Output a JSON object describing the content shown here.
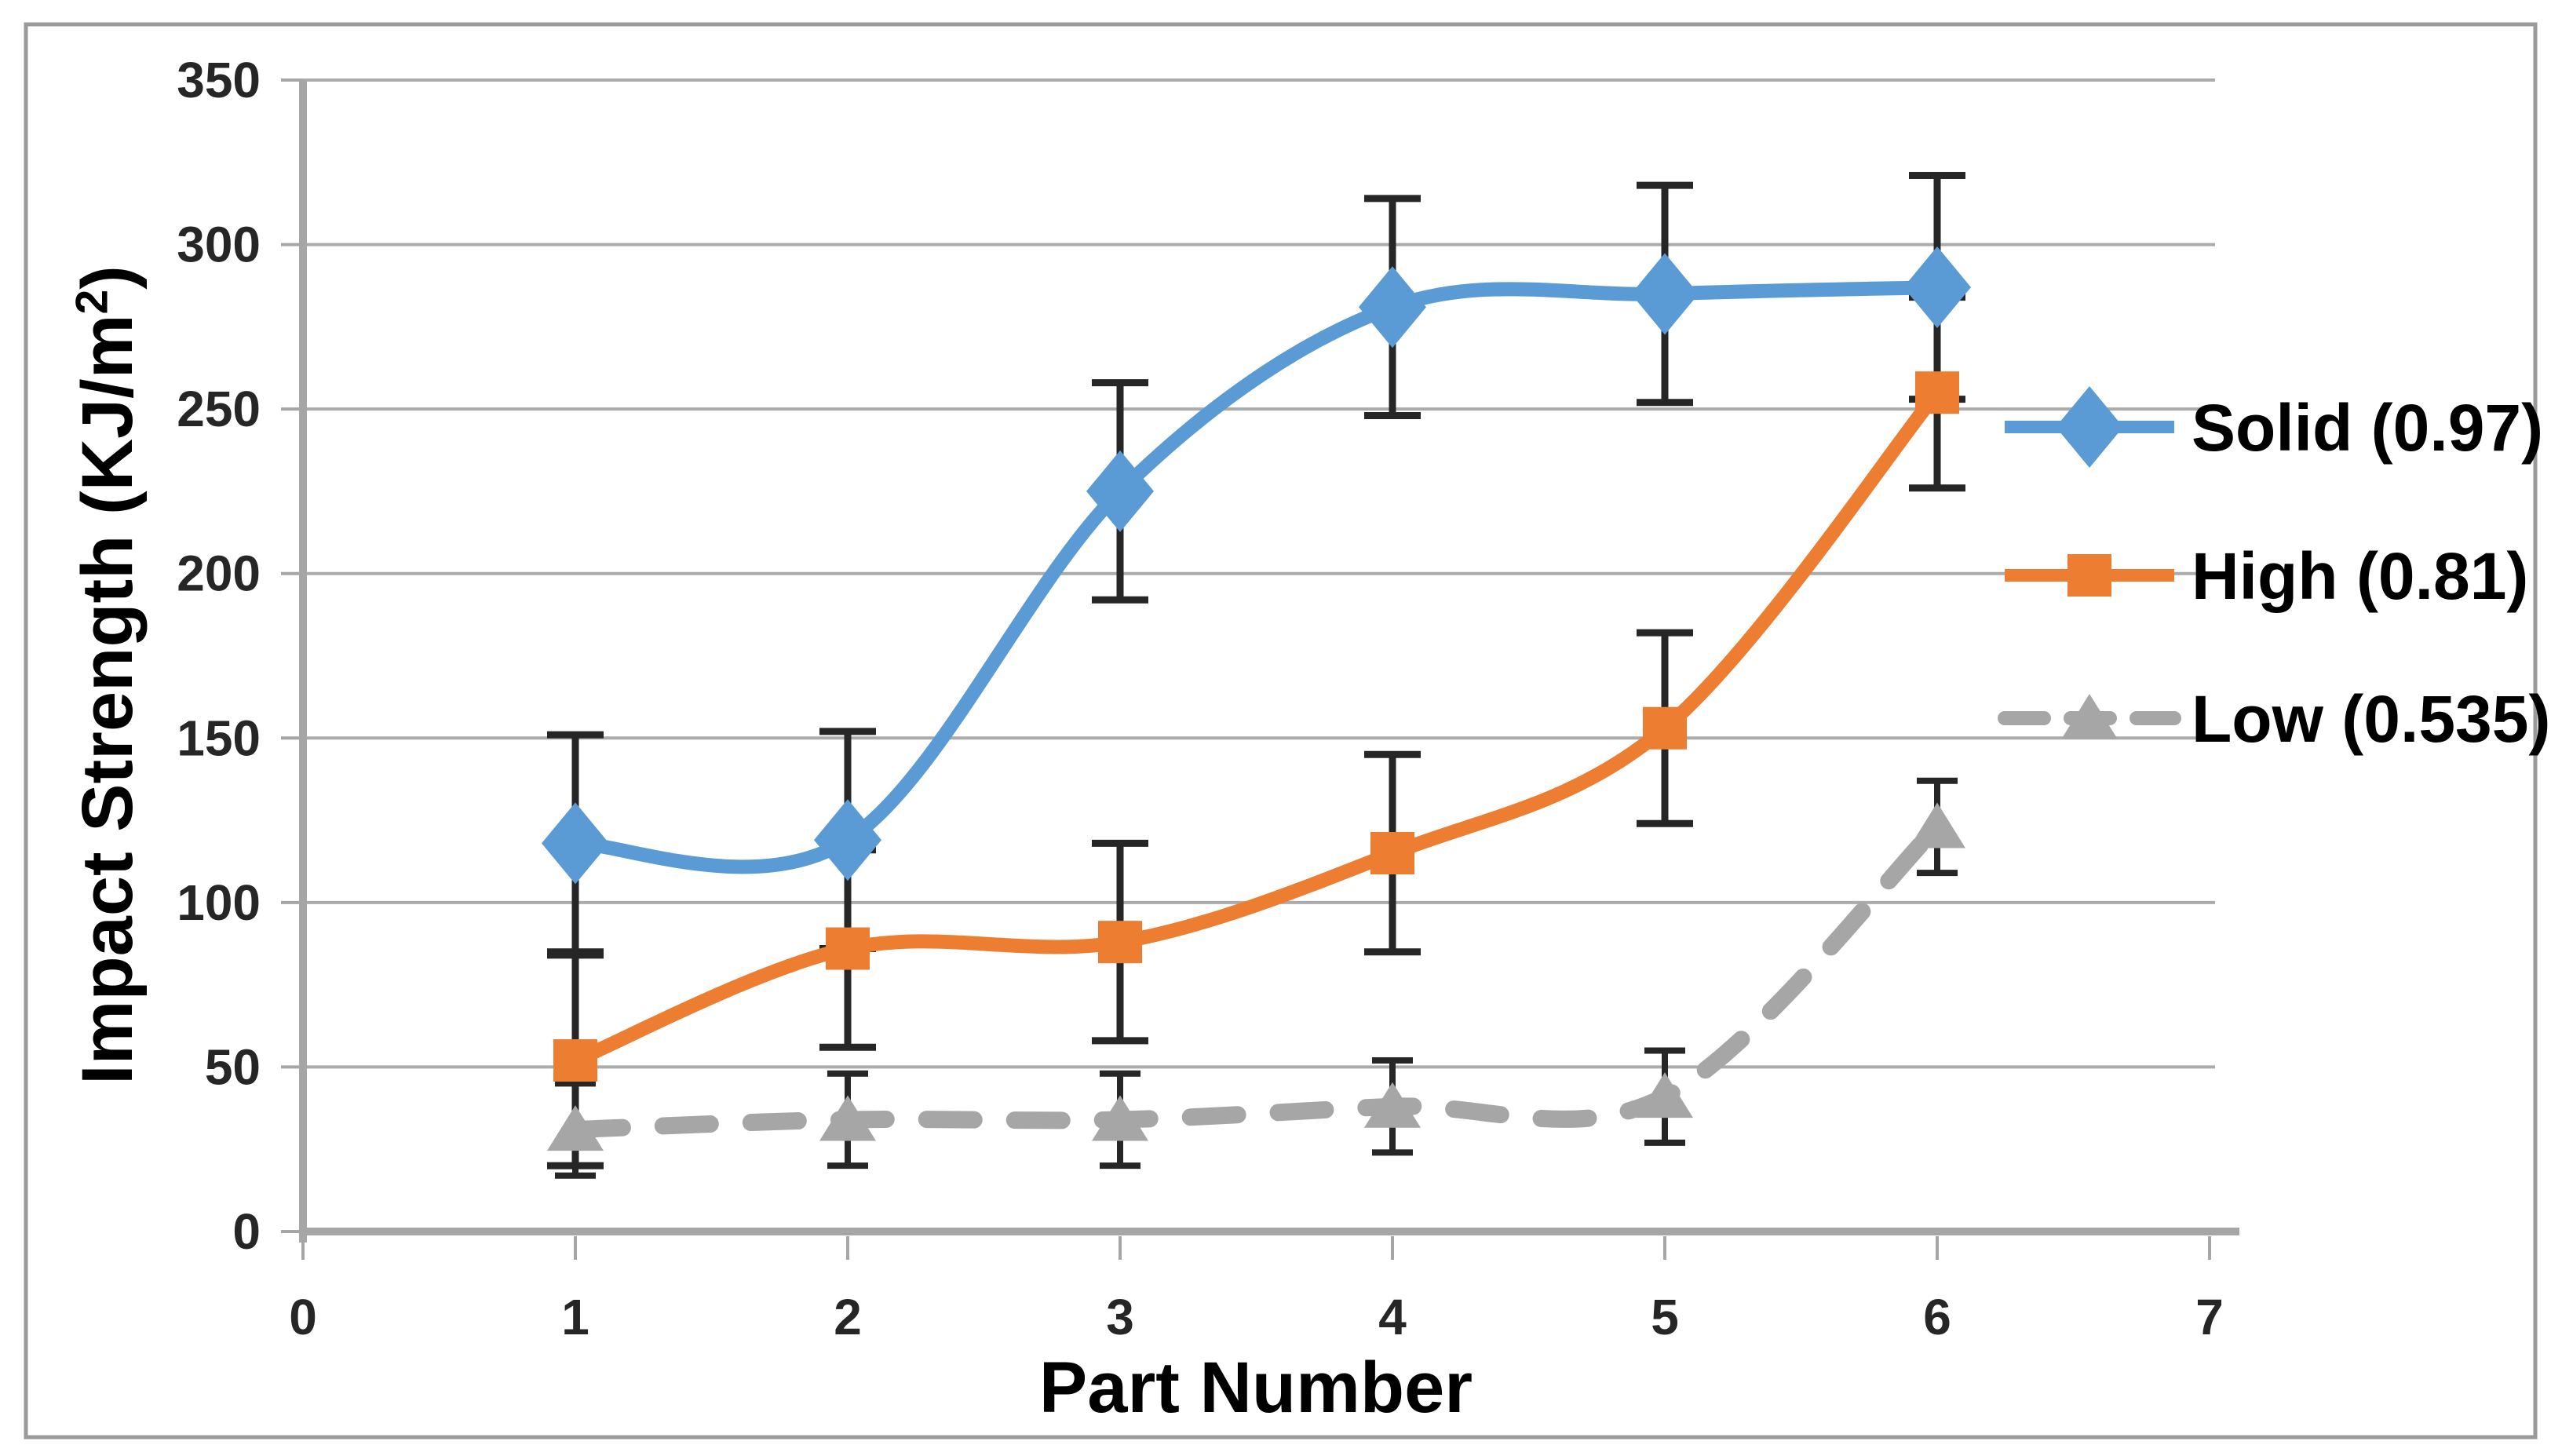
{
  "chart_data": {
    "type": "line",
    "title": "",
    "xlabel": "Part Number",
    "ylabel": "Impact Strength (KJ/m2)",
    "ylabel_parts": {
      "base": "Impact Strength (KJ/m",
      "sup": "2",
      "close": ")"
    },
    "x": [
      1,
      2,
      3,
      4,
      5,
      6
    ],
    "xlim": [
      0,
      7
    ],
    "ylim": [
      0,
      350
    ],
    "x_ticks": [
      0,
      1,
      2,
      3,
      4,
      5,
      6,
      7
    ],
    "y_ticks": [
      0,
      50,
      100,
      150,
      200,
      250,
      300,
      350
    ],
    "grid": "horizontal",
    "legend_position": "right",
    "series": [
      {
        "name": "Solid (0.97)",
        "color": "#5B9BD5",
        "marker": "diamond",
        "line_style": "solid",
        "values": [
          118,
          119,
          225,
          281,
          285,
          287
        ],
        "error": [
          33,
          33,
          33,
          33,
          33,
          34
        ]
      },
      {
        "name": "High (0.81)",
        "color": "#ED7D31",
        "marker": "square",
        "line_style": "solid",
        "values": [
          52,
          86,
          88,
          115,
          153,
          255
        ],
        "error": [
          32,
          30,
          30,
          30,
          29,
          29
        ]
      },
      {
        "name": "Low (0.535)",
        "color": "#A6A6A6",
        "marker": "triangle",
        "line_style": "dashed",
        "values": [
          31,
          34,
          34,
          38,
          41,
          123
        ],
        "error": [
          14,
          14,
          14,
          14,
          14,
          14
        ]
      }
    ],
    "colors": {
      "error_bar": "#262626",
      "gridline": "#ABABAB",
      "axis_line": "#A6A6A6",
      "tick_text": "#262626",
      "title_text": "#000000",
      "frame_border": "#9A9A9A",
      "background": "#FFFFFF"
    }
  }
}
